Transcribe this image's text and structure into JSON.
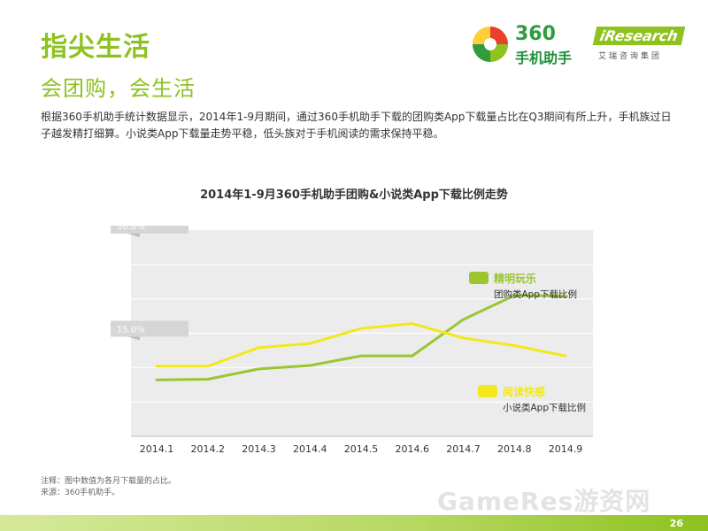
{
  "header": {
    "title": "指尖生活",
    "subtitle": "会团购，会生活",
    "description": "根据360手机助手统计数据显示，2014年1-9月期间，通过360手机助手下载的团购类App下载量占比在Q3期间有所上升，手机族过日子越发精打细算。小说类App下载量走势平稳，低头族对于手机阅读的需求保持平稳。"
  },
  "logos": {
    "brand_360_number": "360",
    "brand_360_name": "手机助手",
    "iresearch": "iResearch",
    "iresearch_cn": "艾瑞咨询集团"
  },
  "chart_data": {
    "type": "line",
    "title": "2014年1-9月360手机助手团购&小说类App下载比例走势",
    "categories": [
      "2014.1",
      "2014.2",
      "2014.3",
      "2014.4",
      "2014.5",
      "2014.6",
      "2014.7",
      "2014.8",
      "2014.9"
    ],
    "ylim": [
      0,
      30
    ],
    "y_tick_labels": [
      "30.0%",
      "15.0%"
    ],
    "y_tick_values": [
      30,
      15
    ],
    "grid": true,
    "series": [
      {
        "name": "精明玩乐",
        "label": "团购类App下载比例",
        "color": "#9bc531",
        "values": [
          8.2,
          8.3,
          9.8,
          10.3,
          11.7,
          11.7,
          17.0,
          20.5,
          20.4
        ]
      },
      {
        "name": "阅读快感",
        "label": "小说类App下载比例",
        "color": "#f2e81c",
        "values": [
          10.2,
          10.2,
          12.9,
          13.5,
          15.7,
          16.4,
          14.3,
          13.2,
          11.7
        ]
      }
    ]
  },
  "footer": {
    "note": "注释：图中数值为各月下载量的占比。",
    "source": "来源：360手机助手。",
    "watermark": "GameRes游资网",
    "page": "26"
  }
}
